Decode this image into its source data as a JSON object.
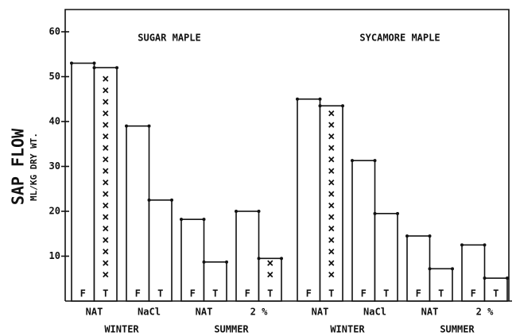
{
  "chart_data": {
    "type": "bar",
    "ylabel": "SAP FLOW",
    "ylabel2": "ML/KG DRY WT.",
    "ylim": [
      0,
      63
    ],
    "yticks": [
      10,
      20,
      30,
      40,
      50,
      60
    ],
    "color": "#111111",
    "panels": [
      {
        "title": "SUGAR MAPLE",
        "categories": [
          "NAT",
          "NaCl",
          "NAT",
          "2 %"
        ],
        "season_labels": [
          "WINTER",
          "SUMMER"
        ],
        "series": [
          {
            "name": "F",
            "values": [
              53,
              39,
              18.2,
              20
            ],
            "hatch": [
              false,
              false,
              false,
              false
            ]
          },
          {
            "name": "T",
            "values": [
              52,
              22.5,
              8.7,
              9.5
            ],
            "hatch": [
              true,
              false,
              false,
              true
            ]
          }
        ]
      },
      {
        "title": "SYCAMORE MAPLE",
        "categories": [
          "NAT",
          "NaCl",
          "NAT",
          "2 %"
        ],
        "season_labels": [
          "WINTER",
          "SUMMER"
        ],
        "series": [
          {
            "name": "F",
            "values": [
              45,
              31.3,
              14.5,
              12.5
            ],
            "hatch": [
              false,
              false,
              false,
              false
            ]
          },
          {
            "name": "T",
            "values": [
              43.5,
              19.5,
              7.2,
              5.1
            ],
            "hatch": [
              true,
              false,
              false,
              true
            ]
          }
        ]
      }
    ]
  }
}
